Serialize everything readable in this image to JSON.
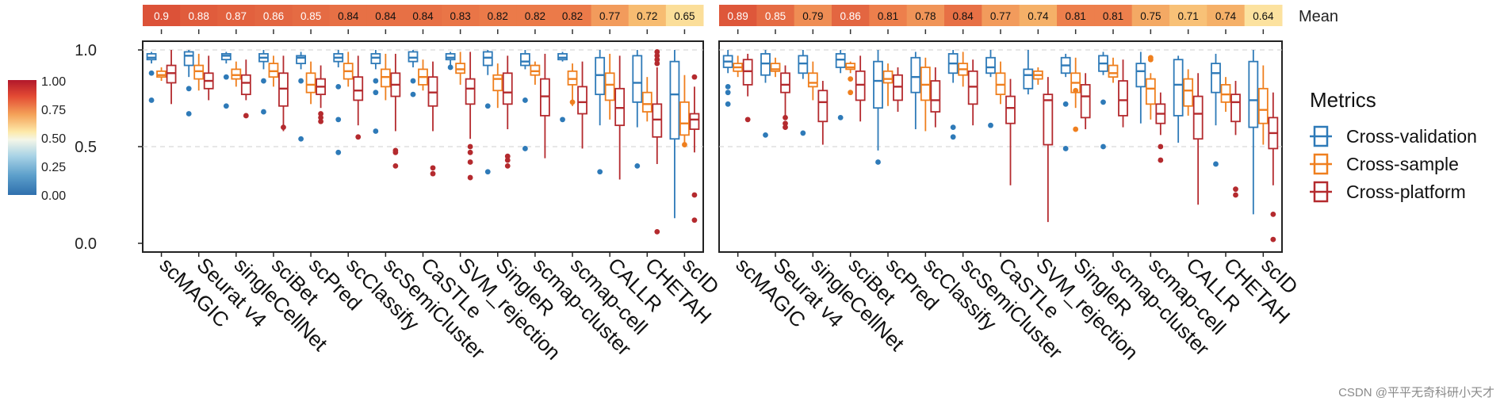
{
  "chart_data": {
    "type": "boxplot",
    "methods": [
      "scMAGIC",
      "Seurat v4",
      "singleCellNet",
      "sciBet",
      "scPred",
      "scClassify",
      "scSemiCluster",
      "CaSTLe",
      "SVM_rejection",
      "SingleR",
      "scmap-cluster",
      "scmap-cell",
      "CALLR",
      "CHETAH",
      "scID"
    ],
    "metrics": [
      {
        "name": "Cross-validation",
        "color": "#2e7ab8"
      },
      {
        "name": "Cross-sample",
        "color": "#ef7f1e"
      },
      {
        "name": "Cross-platform",
        "color": "#b42a2e"
      }
    ],
    "y_ticks": [
      0.0,
      0.5,
      1.0
    ],
    "y_tick_labels": [
      "0.0",
      "0.5",
      "1.0"
    ],
    "ylim": [
      -0.05,
      1.04
    ],
    "grid": "dashed at 0.5 and 1.0",
    "mean_label": "Mean",
    "colorbar": {
      "ticks": [
        "1.00",
        "0.75",
        "0.50",
        "0.25",
        "0.00"
      ],
      "colors": [
        "#b2182b",
        "#e34a33",
        "#f4a259",
        "#fde9a9",
        "#f4f6e8",
        "#a9d3e6",
        "#5c9fcb",
        "#2f6fad"
      ]
    },
    "panels": [
      {
        "means": [
          "0.9",
          "0.88",
          "0.87",
          "0.86",
          "0.85",
          "0.84",
          "0.84",
          "0.84",
          "0.83",
          "0.82",
          "0.82",
          "0.82",
          "0.77",
          "0.72",
          "0.65"
        ],
        "boxes": [
          [
            [
              0.93,
              0.95,
              0.96,
              0.98,
              0.99,
              [
                0.88,
                0.74
              ]
            ],
            [
              0.84,
              0.86,
              0.87,
              0.89,
              0.91,
              []
            ],
            [
              0.72,
              0.83,
              0.88,
              0.92,
              1.0,
              []
            ]
          ],
          [
            [
              0.86,
              0.92,
              0.97,
              0.99,
              1.0,
              [
                0.8,
                0.67
              ]
            ],
            [
              0.79,
              0.85,
              0.89,
              0.92,
              0.98,
              []
            ],
            [
              0.74,
              0.8,
              0.84,
              0.88,
              0.97,
              []
            ]
          ],
          [
            [
              0.93,
              0.95,
              0.97,
              0.98,
              0.99,
              [
                0.86,
                0.71
              ]
            ],
            [
              0.81,
              0.85,
              0.87,
              0.9,
              0.94,
              []
            ],
            [
              0.74,
              0.77,
              0.83,
              0.87,
              0.95,
              [
                0.66
              ]
            ]
          ],
          [
            [
              0.9,
              0.94,
              0.96,
              0.98,
              1.0,
              [
                0.84,
                0.68
              ]
            ],
            [
              0.81,
              0.86,
              0.89,
              0.93,
              0.97,
              []
            ],
            [
              0.58,
              0.71,
              0.8,
              0.88,
              0.97,
              [
                0.6
              ]
            ]
          ],
          [
            [
              0.9,
              0.93,
              0.96,
              0.97,
              0.99,
              [
                0.84,
                0.54
              ]
            ],
            [
              0.72,
              0.78,
              0.82,
              0.88,
              0.94,
              []
            ],
            [
              0.7,
              0.77,
              0.81,
              0.85,
              0.92,
              [
                0.67,
                0.65,
                0.63
              ]
            ]
          ],
          [
            [
              0.91,
              0.94,
              0.96,
              0.98,
              1.0,
              [
                0.81,
                0.64,
                0.47
              ]
            ],
            [
              0.81,
              0.85,
              0.89,
              0.93,
              0.99,
              []
            ],
            [
              0.61,
              0.74,
              0.79,
              0.86,
              0.97,
              [
                0.55
              ]
            ]
          ],
          [
            [
              0.9,
              0.93,
              0.96,
              0.98,
              1.0,
              [
                0.84,
                0.78,
                0.58
              ]
            ],
            [
              0.74,
              0.81,
              0.86,
              0.9,
              0.98,
              []
            ],
            [
              0.58,
              0.76,
              0.82,
              0.88,
              0.98,
              [
                0.48,
                0.47,
                0.4
              ]
            ]
          ],
          [
            [
              0.91,
              0.94,
              0.96,
              0.99,
              1.0,
              [
                0.84,
                0.77
              ]
            ],
            [
              0.79,
              0.82,
              0.86,
              0.9,
              0.95,
              []
            ],
            [
              0.58,
              0.71,
              0.78,
              0.86,
              0.94,
              [
                0.39,
                0.36
              ]
            ]
          ],
          [
            [
              0.92,
              0.95,
              0.96,
              0.98,
              0.99,
              [
                0.91
              ]
            ],
            [
              0.82,
              0.88,
              0.9,
              0.93,
              0.99,
              []
            ],
            [
              0.54,
              0.72,
              0.8,
              0.85,
              0.99,
              [
                0.5,
                0.47,
                0.42,
                0.34
              ]
            ]
          ],
          [
            [
              0.87,
              0.92,
              0.96,
              0.99,
              1.0,
              [
                0.71,
                0.37
              ]
            ],
            [
              0.7,
              0.79,
              0.85,
              0.87,
              0.93,
              []
            ],
            [
              0.59,
              0.72,
              0.78,
              0.88,
              0.97,
              [
                0.45,
                0.43,
                0.4
              ]
            ]
          ],
          [
            [
              0.9,
              0.92,
              0.94,
              0.98,
              1.0,
              [
                0.74,
                0.49
              ]
            ],
            [
              0.82,
              0.87,
              0.89,
              0.92,
              0.94,
              []
            ],
            [
              0.44,
              0.66,
              0.76,
              0.85,
              0.98,
              []
            ]
          ],
          [
            [
              0.94,
              0.95,
              0.96,
              0.98,
              0.99,
              [
                0.64
              ]
            ],
            [
              0.71,
              0.82,
              0.85,
              0.89,
              0.93,
              [
                0.73
              ]
            ],
            [
              0.49,
              0.67,
              0.73,
              0.81,
              0.94,
              []
            ]
          ],
          [
            [
              0.61,
              0.77,
              0.87,
              0.96,
              1.0,
              [
                0.37
              ]
            ],
            [
              0.64,
              0.74,
              0.82,
              0.88,
              0.98,
              []
            ],
            [
              0.33,
              0.61,
              0.7,
              0.8,
              0.97,
              []
            ]
          ],
          [
            [
              0.6,
              0.73,
              0.83,
              0.97,
              1.0,
              [
                0.4
              ]
            ],
            [
              0.63,
              0.68,
              0.72,
              0.78,
              0.86,
              []
            ],
            [
              0.41,
              0.55,
              0.64,
              0.72,
              0.91,
              [
                0.99,
                0.97,
                0.95,
                0.93,
                0.06
              ]
            ]
          ],
          [
            [
              0.13,
              0.54,
              0.77,
              0.94,
              1.0,
              []
            ],
            [
              0.52,
              0.56,
              0.62,
              0.73,
              0.87,
              [
                0.51
              ]
            ],
            [
              0.47,
              0.59,
              0.64,
              0.67,
              0.81,
              [
                0.86,
                0.25,
                0.12
              ]
            ]
          ]
        ]
      },
      {
        "means": [
          "0.89",
          "0.85",
          "0.79",
          "0.86",
          "0.81",
          "0.78",
          "0.84",
          "0.77",
          "0.74",
          "0.81",
          "0.81",
          "0.75",
          "0.71",
          "0.74",
          "0.64"
        ],
        "boxes": [
          [
            [
              0.88,
              0.91,
              0.94,
              0.97,
              1.0,
              [
                0.81,
                0.78,
                0.72
              ]
            ],
            [
              0.86,
              0.89,
              0.91,
              0.93,
              0.97,
              []
            ],
            [
              0.76,
              0.82,
              0.89,
              0.95,
              0.98,
              [
                0.64
              ]
            ]
          ],
          [
            [
              0.83,
              0.87,
              0.93,
              0.98,
              1.0,
              [
                0.56
              ]
            ],
            [
              0.86,
              0.89,
              0.9,
              0.93,
              0.96,
              []
            ],
            [
              0.66,
              0.78,
              0.82,
              0.88,
              0.92,
              [
                0.65,
                0.62,
                0.6
              ]
            ]
          ],
          [
            [
              0.85,
              0.88,
              0.93,
              0.97,
              1.0,
              [
                0.57
              ]
            ],
            [
              0.74,
              0.81,
              0.83,
              0.88,
              0.94,
              []
            ],
            [
              0.51,
              0.63,
              0.73,
              0.79,
              0.84,
              []
            ]
          ],
          [
            [
              0.88,
              0.91,
              0.95,
              0.98,
              1.0,
              [
                0.65
              ]
            ],
            [
              0.88,
              0.9,
              0.91,
              0.93,
              0.94,
              [
                0.85,
                0.78
              ]
            ],
            [
              0.63,
              0.74,
              0.82,
              0.89,
              0.97,
              []
            ]
          ],
          [
            [
              0.48,
              0.7,
              0.84,
              0.94,
              1.0,
              [
                0.42
              ]
            ],
            [
              0.71,
              0.83,
              0.85,
              0.89,
              0.93,
              []
            ],
            [
              0.68,
              0.74,
              0.81,
              0.87,
              0.91,
              []
            ]
          ],
          [
            [
              0.59,
              0.78,
              0.86,
              0.96,
              0.99,
              []
            ],
            [
              0.58,
              0.74,
              0.82,
              0.91,
              0.96,
              []
            ],
            [
              0.6,
              0.68,
              0.74,
              0.84,
              0.91,
              []
            ]
          ],
          [
            [
              0.83,
              0.88,
              0.93,
              0.98,
              1.0,
              [
                0.6,
                0.55
              ]
            ],
            [
              0.81,
              0.87,
              0.9,
              0.93,
              0.99,
              []
            ],
            [
              0.61,
              0.72,
              0.81,
              0.89,
              0.95,
              []
            ]
          ],
          [
            [
              0.86,
              0.88,
              0.91,
              0.96,
              1.0,
              [
                0.61
              ]
            ],
            [
              0.72,
              0.77,
              0.82,
              0.88,
              0.94,
              []
            ],
            [
              0.3,
              0.62,
              0.7,
              0.76,
              0.85,
              []
            ]
          ],
          [
            [
              0.77,
              0.8,
              0.87,
              0.9,
              1.0,
              []
            ],
            [
              0.82,
              0.85,
              0.87,
              0.89,
              0.91,
              []
            ],
            [
              0.11,
              0.51,
              0.74,
              0.77,
              0.86,
              []
            ]
          ],
          [
            [
              0.86,
              0.88,
              0.92,
              0.96,
              0.98,
              [
                0.72,
                0.49
              ]
            ],
            [
              0.7,
              0.78,
              0.83,
              0.88,
              0.96,
              [
                0.59,
                0.79
              ]
            ],
            [
              0.59,
              0.65,
              0.76,
              0.82,
              0.88,
              []
            ]
          ],
          [
            [
              0.87,
              0.89,
              0.93,
              0.97,
              0.99,
              [
                0.73,
                0.5
              ]
            ],
            [
              0.83,
              0.86,
              0.88,
              0.92,
              0.96,
              []
            ],
            [
              0.6,
              0.66,
              0.74,
              0.84,
              0.95,
              []
            ]
          ],
          [
            [
              0.62,
              0.81,
              0.89,
              0.93,
              0.99,
              []
            ],
            [
              0.64,
              0.72,
              0.8,
              0.85,
              0.88,
              [
                0.96,
                0.95
              ]
            ],
            [
              0.56,
              0.62,
              0.67,
              0.72,
              0.78,
              [
                0.5,
                0.43
              ]
            ]
          ],
          [
            [
              0.52,
              0.66,
              0.82,
              0.95,
              0.97,
              []
            ],
            [
              0.66,
              0.71,
              0.79,
              0.85,
              0.9,
              []
            ],
            [
              0.2,
              0.54,
              0.67,
              0.76,
              0.88,
              []
            ]
          ],
          [
            [
              0.61,
              0.78,
              0.88,
              0.93,
              0.98,
              [
                0.41
              ]
            ],
            [
              0.68,
              0.73,
              0.77,
              0.82,
              0.86,
              []
            ],
            [
              0.56,
              0.63,
              0.73,
              0.77,
              0.84,
              [
                0.28,
                0.25
              ]
            ]
          ],
          [
            [
              0.15,
              0.6,
              0.74,
              0.94,
              1.0,
              []
            ],
            [
              0.51,
              0.62,
              0.69,
              0.8,
              0.92,
              []
            ],
            [
              0.3,
              0.49,
              0.57,
              0.65,
              0.78,
              [
                0.15,
                0.02
              ]
            ]
          ]
        ]
      }
    ],
    "watermark": "CSDN @平平无奇科研小天才"
  }
}
